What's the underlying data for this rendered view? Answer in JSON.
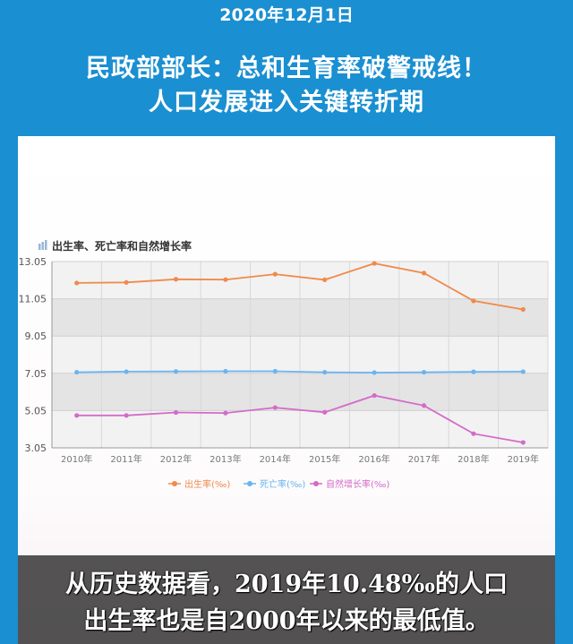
{
  "header": {
    "date": "2020年12月1日",
    "headline_line1": "民政部部长：总和生育率破警戒线！",
    "headline_line2": "人口发展进入关键转折期"
  },
  "caption": {
    "line1": "从历史数据看，2019年10.48‰的人口",
    "line2": "出生率也是自2000年以来的最低值。"
  },
  "colors": {
    "birth": "#f08a4b",
    "death": "#6ab4f0",
    "natural": "#d46bc8",
    "band_dark": "#e4e4e4",
    "band_light": "#f2f2f2"
  },
  "chart_data": {
    "type": "line",
    "title": "出生率、死亡率和自然增长率",
    "categories": [
      "2010年",
      "2011年",
      "2012年",
      "2013年",
      "2014年",
      "2015年",
      "2016年",
      "2017年",
      "2018年",
      "2019年"
    ],
    "yticks": [
      "3.05",
      "5.05",
      "7.05",
      "9.05",
      "11.05",
      "13.05"
    ],
    "ylim": [
      3.05,
      13.05
    ],
    "grid": true,
    "legend_position": "bottom",
    "series": [
      {
        "name": "出生率(‰)",
        "color": "#f08a4b",
        "values": [
          11.9,
          11.93,
          12.1,
          12.08,
          12.37,
          12.07,
          12.95,
          12.43,
          10.94,
          10.48
        ]
      },
      {
        "name": "死亡率(‰)",
        "color": "#6ab4f0",
        "values": [
          7.11,
          7.14,
          7.15,
          7.16,
          7.16,
          7.11,
          7.09,
          7.11,
          7.13,
          7.14
        ]
      },
      {
        "name": "自然增长率(‰)",
        "color": "#d46bc8",
        "values": [
          4.79,
          4.79,
          4.95,
          4.92,
          5.21,
          4.96,
          5.86,
          5.32,
          3.81,
          3.34
        ]
      }
    ]
  }
}
